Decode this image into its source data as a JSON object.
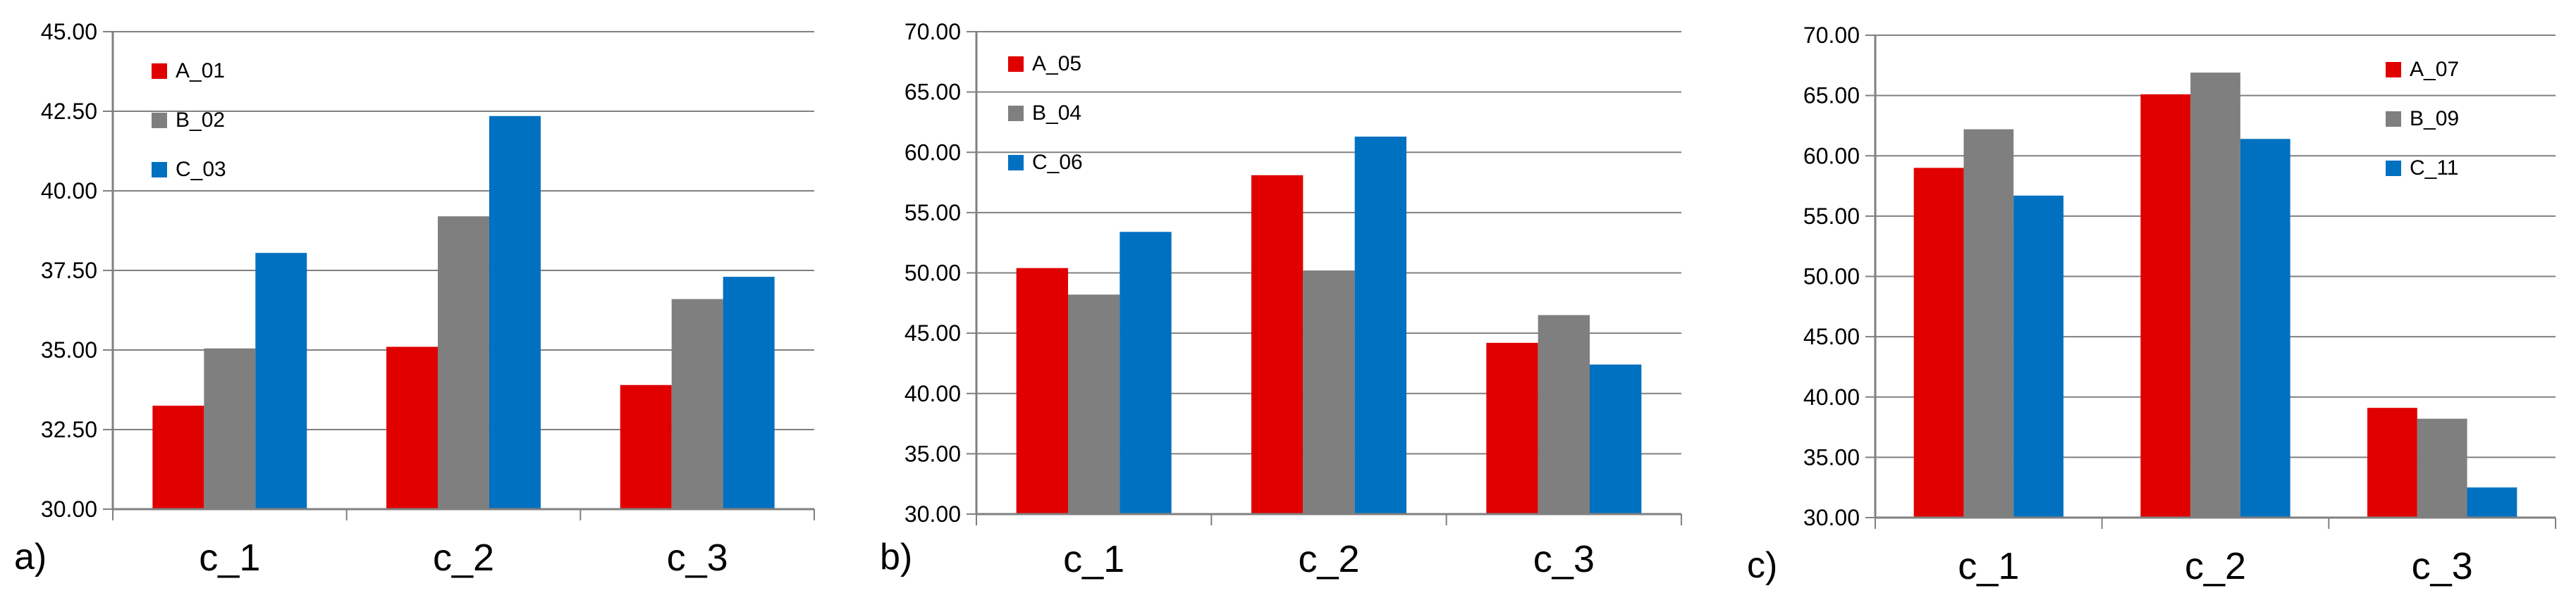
{
  "colors": {
    "series": [
      "#e00000",
      "#7f7f7f",
      "#0070c0"
    ],
    "grid": "#808080",
    "axis": "#808080"
  },
  "chart_data": [
    {
      "type": "bar",
      "panel_label": "a)",
      "categories": [
        "c_1",
        "c_2",
        "c_3"
      ],
      "series": [
        {
          "name": "A_01",
          "values": [
            33.25,
            35.1,
            33.9
          ]
        },
        {
          "name": "B_02",
          "values": [
            35.05,
            39.2,
            36.6
          ]
        },
        {
          "name": "C_03",
          "values": [
            38.05,
            42.35,
            37.3
          ]
        }
      ],
      "ylim": [
        30,
        45
      ],
      "yticks": [
        "30.00",
        "32.50",
        "35.00",
        "37.50",
        "40.00",
        "42.50",
        "45.00"
      ],
      "grid": true,
      "legend_position": "top-left"
    },
    {
      "type": "bar",
      "panel_label": "b)",
      "categories": [
        "c_1",
        "c_2",
        "c_3"
      ],
      "series": [
        {
          "name": "A_05",
          "values": [
            50.4,
            58.1,
            44.2
          ]
        },
        {
          "name": "B_04",
          "values": [
            48.2,
            50.2,
            46.5
          ]
        },
        {
          "name": "C_06",
          "values": [
            53.4,
            61.3,
            42.4
          ]
        }
      ],
      "ylim": [
        30,
        70
      ],
      "yticks": [
        "30.00",
        "35.00",
        "40.00",
        "45.00",
        "50.00",
        "55.00",
        "60.00",
        "65.00",
        "70.00"
      ],
      "grid": true,
      "legend_position": "top-left"
    },
    {
      "type": "bar",
      "panel_label": "c)",
      "categories": [
        "c_1",
        "c_2",
        "c_3"
      ],
      "series": [
        {
          "name": "A_07",
          "values": [
            59.0,
            65.1,
            39.1
          ]
        },
        {
          "name": "B_09",
          "values": [
            62.2,
            66.9,
            38.2
          ]
        },
        {
          "name": "C_11",
          "values": [
            56.7,
            61.4,
            32.5
          ]
        }
      ],
      "ylim": [
        30,
        70
      ],
      "yticks": [
        "30.00",
        "35.00",
        "40.00",
        "45.00",
        "50.00",
        "55.00",
        "60.00",
        "65.00",
        "70.00"
      ],
      "grid": true,
      "legend_position": "top-right"
    }
  ]
}
